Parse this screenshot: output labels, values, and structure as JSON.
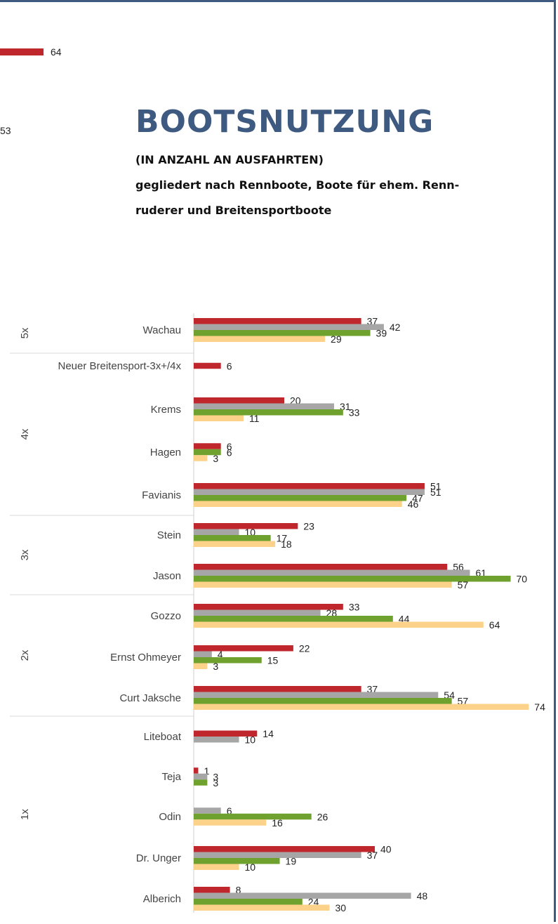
{
  "header": {
    "title": "BOOTSNUTZUNG",
    "subtitle_1": "(IN ANZAHL AN AUSFAHRTEN)",
    "subtitle_2": "gegliedert nach Rennboote, Boote für ehem. Renn-",
    "subtitle_3": "ruderer und Breitensportboote"
  },
  "previous_chart": {
    "partial_values": [
      "64",
      "53"
    ],
    "bar_color": "#c0272d"
  },
  "colors": {
    "frame": "#3f5a80",
    "series": [
      "#c0272d",
      "#a6a6a6",
      "#6fa12e",
      "#fcd28a"
    ]
  },
  "chart_data": {
    "type": "bar",
    "orientation": "horizontal",
    "series_count": 4,
    "xlim": [
      0,
      75
    ],
    "groups": [
      {
        "label": "5x",
        "boats": [
          "Wachau"
        ]
      },
      {
        "label": "4x",
        "boats": [
          "Neuer Breitensport-3x+/4x",
          "Krems",
          "Hagen",
          "Favianis"
        ]
      },
      {
        "label": "3x",
        "boats": [
          "Stein",
          "Jason"
        ]
      },
      {
        "label": "2x",
        "boats": [
          "Gozzo",
          "Ernst Ohmeyer",
          "Curt Jaksche"
        ]
      },
      {
        "label": "1x",
        "boats": [
          "Liteboat",
          "Teja",
          "Odin",
          "Dr. Unger",
          "Alberich"
        ]
      }
    ],
    "categories": [
      "Wachau",
      "Neuer Breitensport-3x+/4x",
      "Krems",
      "Hagen",
      "Favianis",
      "Stein",
      "Jason",
      "Gozzo",
      "Ernst Ohmeyer",
      "Curt Jaksche",
      "Liteboat",
      "Teja",
      "Odin",
      "Dr. Unger",
      "Alberich"
    ],
    "series": [
      {
        "values": [
          37,
          6,
          20,
          6,
          51,
          23,
          56,
          33,
          22,
          37,
          14,
          1,
          null,
          40,
          8
        ]
      },
      {
        "values": [
          42,
          null,
          31,
          null,
          51,
          10,
          61,
          28,
          4,
          54,
          10,
          3,
          6,
          37,
          48
        ]
      },
      {
        "values": [
          39,
          null,
          33,
          6,
          47,
          17,
          70,
          44,
          15,
          57,
          null,
          3,
          26,
          19,
          24
        ]
      },
      {
        "values": [
          29,
          null,
          11,
          3,
          46,
          18,
          57,
          64,
          3,
          74,
          null,
          null,
          16,
          10,
          30
        ]
      }
    ]
  }
}
